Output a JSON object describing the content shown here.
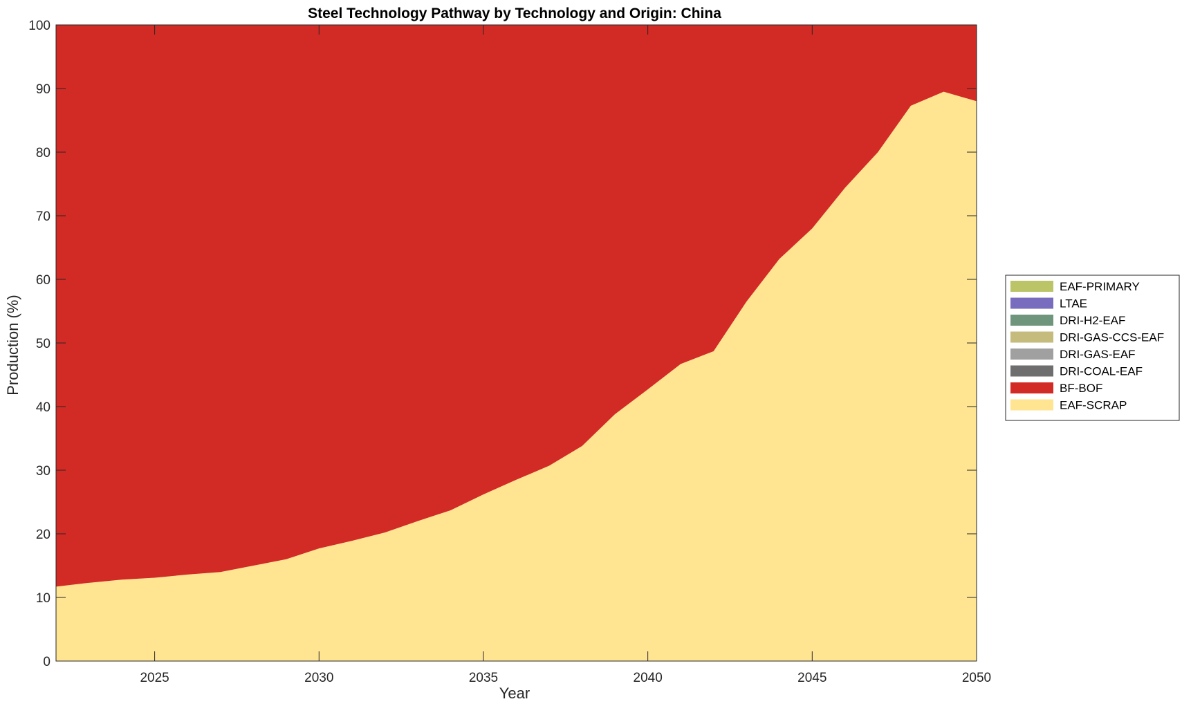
{
  "chart_data": {
    "type": "area",
    "stacked": true,
    "title": "Steel Technology Pathway by Technology and Origin: China",
    "xlabel": "Year",
    "ylabel": "Production (%)",
    "xlim": [
      2022,
      2050
    ],
    "ylim": [
      0,
      100
    ],
    "xticks": [
      2025,
      2030,
      2035,
      2040,
      2045,
      2050
    ],
    "yticks": [
      0,
      10,
      20,
      30,
      40,
      50,
      60,
      70,
      80,
      90,
      100
    ],
    "grid": false,
    "legend_position": "right",
    "x": [
      2022,
      2023,
      2024,
      2025,
      2026,
      2027,
      2028,
      2029,
      2030,
      2031,
      2032,
      2033,
      2034,
      2035,
      2036,
      2037,
      2038,
      2039,
      2040,
      2041,
      2042,
      2043,
      2044,
      2045,
      2046,
      2047,
      2048,
      2049,
      2050
    ],
    "series": [
      {
        "name": "EAF-SCRAP",
        "color": "#FFE492",
        "values": [
          11.7,
          12.3,
          12.8,
          13.1,
          13.6,
          14.0,
          15.0,
          16.0,
          17.7,
          18.9,
          20.2,
          22.0,
          23.7,
          26.2,
          28.5,
          30.7,
          33.8,
          38.8,
          42.7,
          46.7,
          48.7,
          56.5,
          63.2,
          68.0,
          74.4,
          80.0,
          87.3,
          89.5,
          88.0
        ]
      },
      {
        "name": "BF-BOF",
        "color": "#D22A24",
        "values": [
          88.3,
          87.7,
          87.2,
          86.9,
          86.4,
          86.0,
          85.0,
          84.0,
          82.3,
          81.1,
          79.8,
          78.0,
          76.3,
          73.8,
          71.5,
          69.3,
          66.2,
          61.2,
          57.3,
          53.3,
          51.3,
          43.5,
          36.8,
          32.0,
          25.6,
          20.0,
          12.7,
          10.5,
          12.0
        ]
      },
      {
        "name": "DRI-COAL-EAF",
        "color": "#6E6E6E",
        "values": [
          0,
          0,
          0,
          0,
          0,
          0,
          0,
          0,
          0,
          0,
          0,
          0,
          0,
          0,
          0,
          0,
          0,
          0,
          0,
          0,
          0,
          0,
          0,
          0,
          0,
          0,
          0,
          0,
          0
        ]
      },
      {
        "name": "DRI-GAS-EAF",
        "color": "#A0A0A0",
        "values": [
          0,
          0,
          0,
          0,
          0,
          0,
          0,
          0,
          0,
          0,
          0,
          0,
          0,
          0,
          0,
          0,
          0,
          0,
          0,
          0,
          0,
          0,
          0,
          0,
          0,
          0,
          0,
          0,
          0
        ]
      },
      {
        "name": "DRI-GAS-CCS-EAF",
        "color": "#C4BB7C",
        "values": [
          0,
          0,
          0,
          0,
          0,
          0,
          0,
          0,
          0,
          0,
          0,
          0,
          0,
          0,
          0,
          0,
          0,
          0,
          0,
          0,
          0,
          0,
          0,
          0,
          0,
          0,
          0,
          0,
          0
        ]
      },
      {
        "name": "DRI-H2-EAF",
        "color": "#6F967C",
        "values": [
          0,
          0,
          0,
          0,
          0,
          0,
          0,
          0,
          0,
          0,
          0,
          0,
          0,
          0,
          0,
          0,
          0,
          0,
          0,
          0,
          0,
          0,
          0,
          0,
          0,
          0,
          0,
          0,
          0
        ]
      },
      {
        "name": "LTAE",
        "color": "#776CBE",
        "values": [
          0,
          0,
          0,
          0,
          0,
          0,
          0,
          0,
          0,
          0,
          0,
          0,
          0,
          0,
          0,
          0,
          0,
          0,
          0,
          0,
          0,
          0,
          0,
          0,
          0,
          0,
          0,
          0,
          0
        ]
      },
      {
        "name": "EAF-PRIMARY",
        "color": "#BCC468",
        "values": [
          0,
          0,
          0,
          0,
          0,
          0,
          0,
          0,
          0,
          0,
          0,
          0,
          0,
          0,
          0,
          0,
          0,
          0,
          0,
          0,
          0,
          0,
          0,
          0,
          0,
          0,
          0,
          0,
          0
        ]
      }
    ],
    "legend_order": [
      "EAF-PRIMARY",
      "LTAE",
      "DRI-H2-EAF",
      "DRI-GAS-CCS-EAF",
      "DRI-GAS-EAF",
      "DRI-COAL-EAF",
      "BF-BOF",
      "EAF-SCRAP"
    ]
  }
}
